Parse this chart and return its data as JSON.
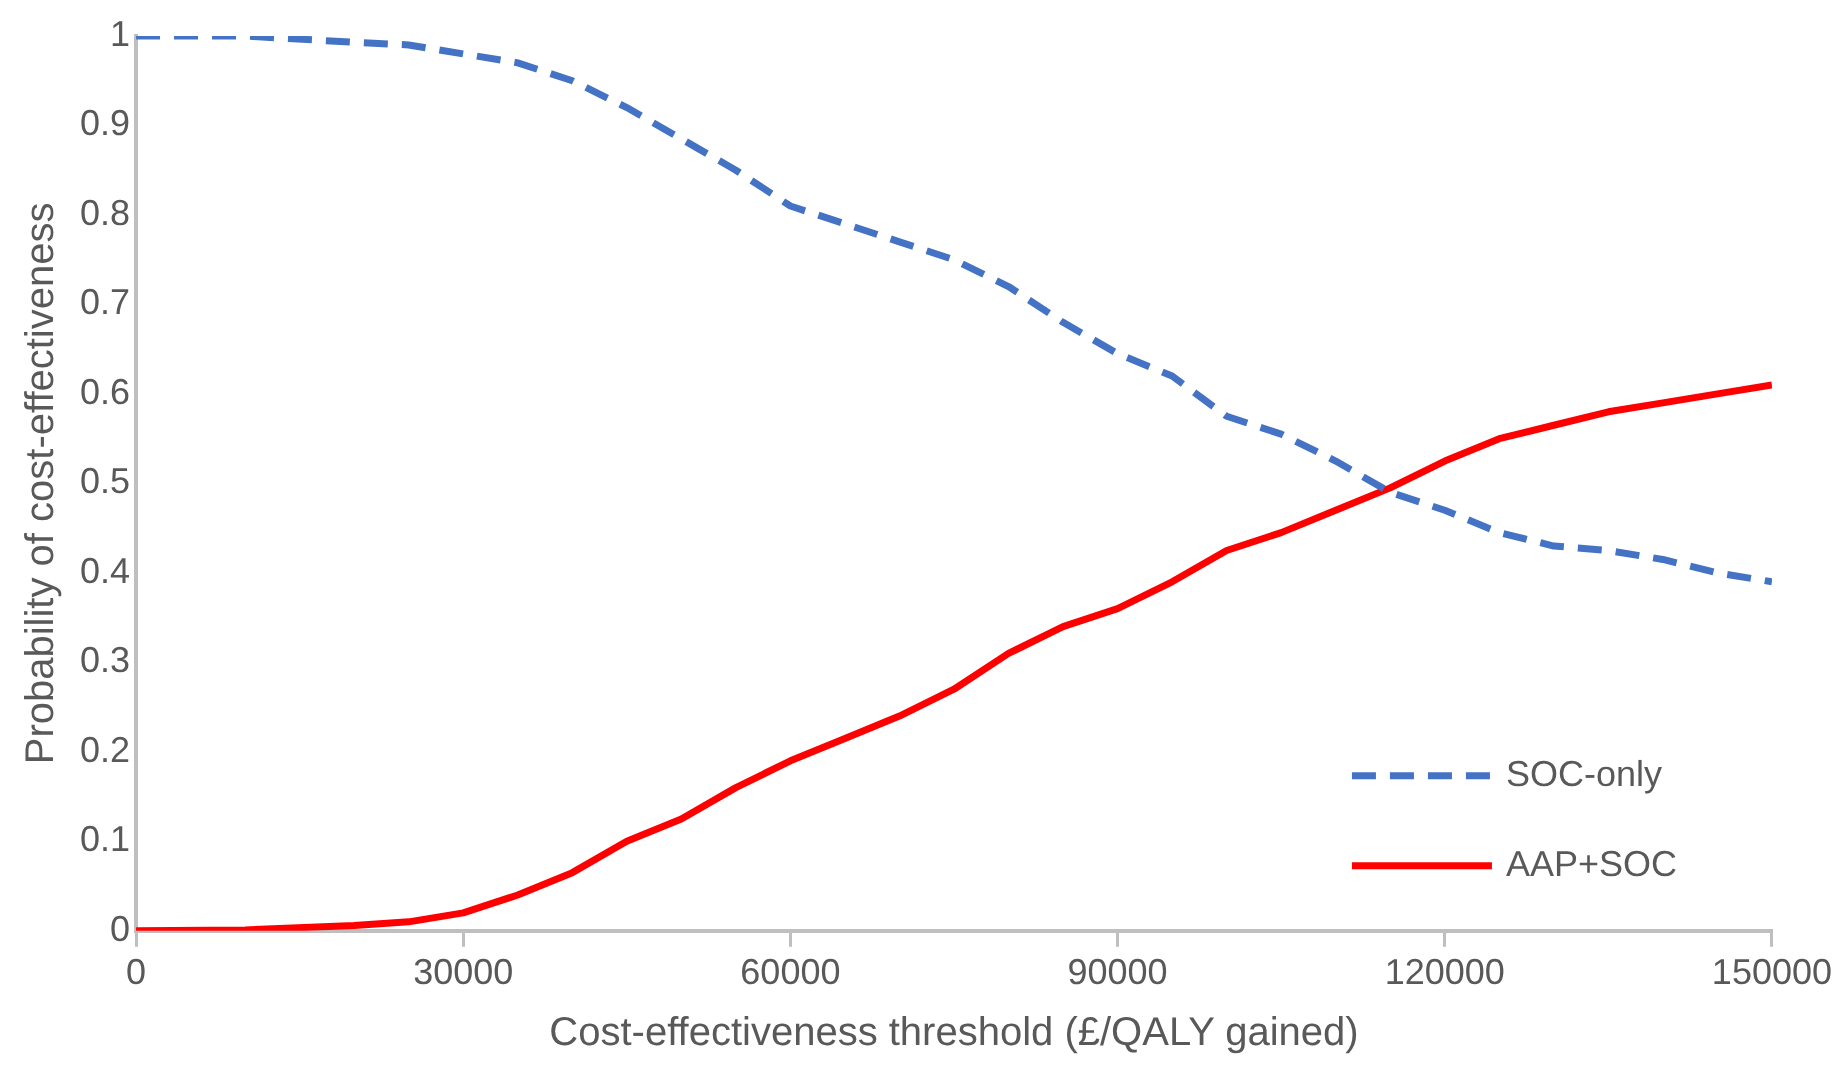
{
  "chart_data": {
    "type": "line",
    "xlabel": "Cost-effectiveness threshold (£/QALY gained)",
    "ylabel": "Probability of cost-effectiveness",
    "x": [
      0,
      10000,
      20000,
      25000,
      30000,
      35000,
      40000,
      45000,
      50000,
      55000,
      60000,
      65000,
      70000,
      75000,
      80000,
      85000,
      90000,
      95000,
      100000,
      105000,
      110000,
      115000,
      120000,
      125000,
      130000,
      135000,
      140000,
      145000,
      150000
    ],
    "series": [
      {
        "name": "SOC-only",
        "color": "#4472c4",
        "line_style": "dashed",
        "values": [
          1.0,
          1.0,
          0.993,
          0.99,
          0.98,
          0.97,
          0.95,
          0.92,
          0.885,
          0.85,
          0.81,
          0.79,
          0.77,
          0.75,
          0.72,
          0.68,
          0.645,
          0.62,
          0.575,
          0.555,
          0.525,
          0.49,
          0.47,
          0.445,
          0.43,
          0.425,
          0.415,
          0.4,
          0.39
        ]
      },
      {
        "name": "AAP+SOC",
        "color": "#ff0000",
        "line_style": "solid",
        "values": [
          0,
          0.001,
          0.006,
          0.01,
          0.02,
          0.04,
          0.065,
          0.1,
          0.125,
          0.16,
          0.19,
          0.215,
          0.24,
          0.27,
          0.31,
          0.34,
          0.36,
          0.39,
          0.425,
          0.445,
          0.47,
          0.495,
          0.525,
          0.55,
          0.565,
          0.58,
          0.59,
          0.6,
          0.61
        ]
      }
    ],
    "xlim": [
      0,
      150000
    ],
    "xticks": [
      0,
      30000,
      60000,
      90000,
      120000,
      150000
    ],
    "ylim": [
      0,
      1
    ],
    "yticks": [
      0,
      0.1,
      0.2,
      0.3,
      0.4,
      0.5,
      0.6,
      0.7,
      0.8,
      0.9,
      1
    ],
    "grid": false,
    "legend": "bottom right",
    "marker": "none"
  }
}
